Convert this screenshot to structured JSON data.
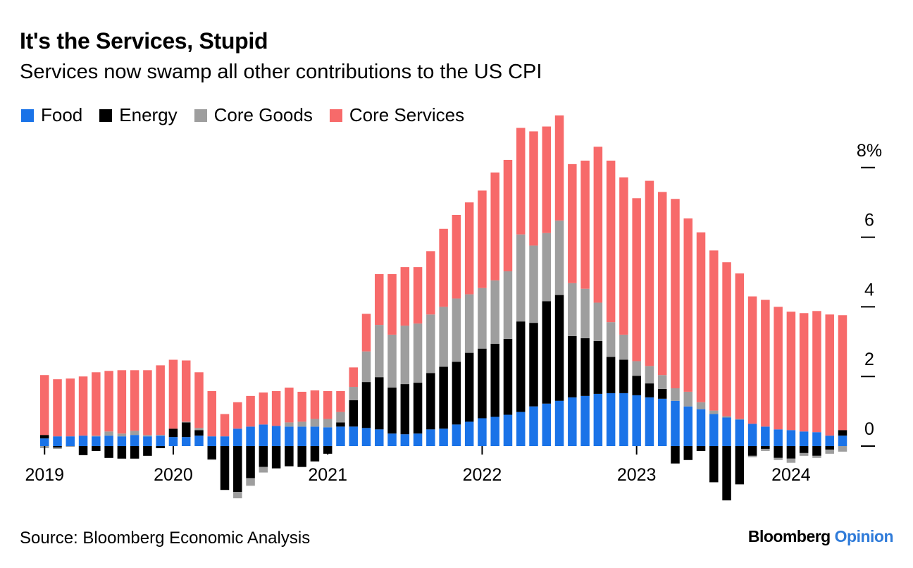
{
  "header": {
    "title": "It's the Services, Stupid",
    "subtitle": "Services now swamp all other contributions to the US CPI"
  },
  "footer": {
    "source": "Source: Bloomberg Economic Analysis",
    "brand_main": "Bloomberg",
    "brand_accent": "Opinion"
  },
  "colors": {
    "food": "#1a73e8",
    "energy": "#000000",
    "core_goods": "#9e9e9e",
    "core_services": "#f76a6a",
    "brand_accent": "#2f7bd9"
  },
  "chart_data": {
    "type": "bar",
    "stacked": true,
    "y_axis_side": "right",
    "ylim": [
      -1.6,
      9.2
    ],
    "yticks": [
      {
        "value": 8,
        "label": "8%"
      },
      {
        "value": 6,
        "label": "6"
      },
      {
        "value": 4,
        "label": "4"
      },
      {
        "value": 2,
        "label": "2"
      },
      {
        "value": 0,
        "label": "0"
      }
    ],
    "xticks": [
      {
        "index": 0,
        "label": "2019"
      },
      {
        "index": 10,
        "label": "2020"
      },
      {
        "index": 22,
        "label": "2021"
      },
      {
        "index": 34,
        "label": "2022"
      },
      {
        "index": 46,
        "label": "2023"
      },
      {
        "index": 58,
        "label": "2024"
      }
    ],
    "legend": [
      "Food",
      "Energy",
      "Core Goods",
      "Core Services"
    ],
    "categories": [
      "Jan 2019",
      "Feb 2019",
      "Mar 2019",
      "Apr 2019",
      "May 2019",
      "Jun 2019",
      "Jul 2019",
      "Aug 2019",
      "Sep 2019",
      "Oct 2019",
      "Nov 2019",
      "Dec 2019",
      "Jan 2020",
      "Feb 2020",
      "Mar 2020",
      "Apr 2020",
      "May 2020",
      "Jun 2020",
      "Jul 2020",
      "Aug 2020",
      "Sep 2020",
      "Oct 2020",
      "Nov 2020",
      "Dec 2020",
      "Jan 2021",
      "Feb 2021",
      "Mar 2021",
      "Apr 2021",
      "May 2021",
      "Jun 2021",
      "Jul 2021",
      "Aug 2021",
      "Sep 2021",
      "Oct 2021",
      "Nov 2021",
      "Dec 2021",
      "Jan 2022",
      "Feb 2022",
      "Mar 2022",
      "Apr 2022",
      "May 2022",
      "Jun 2022",
      "Jul 2022",
      "Aug 2022",
      "Sep 2022",
      "Oct 2022",
      "Nov 2022",
      "Dec 2022",
      "Jan 2023",
      "Feb 2023",
      "Mar 2023",
      "Apr 2023",
      "May 2023",
      "Jun 2023",
      "Jul 2023",
      "Aug 2023",
      "Sep 2023",
      "Oct 2023",
      "Nov 2023",
      "Dec 2023",
      "Jan 2024",
      "Feb 2024",
      "Mar 2024"
    ],
    "series": [
      {
        "name": "Food",
        "values": [
          0.22,
          0.28,
          0.28,
          0.3,
          0.28,
          0.3,
          0.28,
          0.32,
          0.28,
          0.3,
          0.26,
          0.26,
          0.3,
          0.28,
          0.28,
          0.5,
          0.56,
          0.62,
          0.58,
          0.56,
          0.56,
          0.56,
          0.54,
          0.56,
          0.56,
          0.52,
          0.48,
          0.36,
          0.34,
          0.36,
          0.48,
          0.5,
          0.62,
          0.7,
          0.8,
          0.84,
          0.9,
          0.98,
          1.14,
          1.22,
          1.3,
          1.4,
          1.44,
          1.5,
          1.52,
          1.52,
          1.46,
          1.4,
          1.36,
          1.3,
          1.14,
          1.06,
          0.92,
          0.82,
          0.76,
          0.64,
          0.56,
          0.48,
          0.46,
          0.42,
          0.4,
          0.3,
          0.3
        ]
      },
      {
        "name": "Energy",
        "values": [
          0.1,
          -0.04,
          0.0,
          -0.26,
          -0.14,
          -0.34,
          -0.36,
          -0.36,
          -0.28,
          -0.06,
          0.24,
          0.42,
          0.16,
          -0.38,
          -1.26,
          -1.32,
          -0.92,
          -0.6,
          -0.64,
          -0.58,
          -0.6,
          -0.44,
          -0.22,
          0.12,
          0.76,
          1.32,
          1.5,
          1.32,
          1.44,
          1.46,
          1.62,
          1.78,
          1.8,
          1.98,
          2.0,
          2.1,
          2.18,
          2.6,
          2.4,
          2.94,
          3.04,
          1.76,
          1.66,
          1.52,
          1.04,
          0.96,
          0.56,
          0.4,
          0.28,
          -0.5,
          -0.4,
          -0.14,
          -1.04,
          -1.56,
          -1.1,
          -0.28,
          -0.08,
          -0.34,
          -0.36,
          -0.2,
          -0.28,
          -0.1,
          0.16
        ]
      },
      {
        "name": "Core Goods",
        "values": [
          -0.06,
          -0.04,
          -0.02,
          0.0,
          0.02,
          0.12,
          0.08,
          0.12,
          0.04,
          0.02,
          0.0,
          0.02,
          0.06,
          -0.02,
          0.0,
          -0.18,
          -0.22,
          -0.16,
          0.0,
          0.12,
          0.14,
          0.22,
          0.24,
          0.3,
          0.38,
          0.88,
          1.5,
          1.52,
          1.68,
          1.7,
          1.68,
          1.72,
          1.82,
          1.68,
          1.74,
          1.82,
          1.94,
          2.5,
          2.22,
          1.96,
          2.14,
          1.52,
          1.42,
          1.1,
          1.0,
          0.72,
          0.42,
          0.5,
          0.4,
          0.36,
          0.42,
          0.2,
          0.1,
          0.04,
          0.02,
          -0.04,
          -0.06,
          -0.06,
          -0.12,
          -0.08,
          -0.06,
          -0.12,
          -0.16
        ]
      },
      {
        "name": "Core Services",
        "values": [
          1.72,
          1.64,
          1.66,
          1.7,
          1.82,
          1.74,
          1.82,
          1.74,
          1.86,
          2.0,
          1.98,
          1.76,
          1.6,
          1.3,
          0.64,
          0.76,
          0.88,
          0.92,
          1.0,
          1.0,
          0.86,
          0.82,
          0.8,
          0.6,
          0.56,
          1.08,
          1.46,
          1.74,
          1.68,
          1.62,
          1.82,
          2.24,
          2.4,
          2.64,
          2.8,
          3.1,
          3.2,
          3.06,
          3.28,
          3.06,
          3.02,
          3.42,
          3.68,
          4.48,
          4.64,
          4.52,
          4.68,
          5.32,
          5.26,
          5.44,
          4.98,
          4.88,
          4.6,
          4.42,
          4.18,
          3.66,
          3.64,
          3.52,
          3.4,
          3.4,
          3.48,
          3.48,
          3.3
        ]
      }
    ]
  }
}
